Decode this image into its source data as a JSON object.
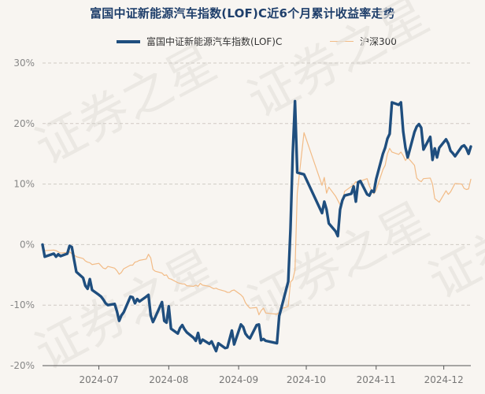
{
  "chart_data": {
    "type": "line",
    "title": "富国中证新能源汽车指数(LOF)C近6个月累计收益率走势",
    "watermark": "证券之星",
    "ylim": [
      -20,
      30
    ],
    "yticks": [
      -20,
      -10,
      0,
      10,
      20,
      30
    ],
    "ytick_labels": [
      "-20%",
      "-10%",
      "0%",
      "10%",
      "20%",
      "30%"
    ],
    "xlim": [
      "2024-06-06",
      "2024-12-13"
    ],
    "xticks": [
      "2024-07-01",
      "2024-08-01",
      "2024-09-01",
      "2024-10-01",
      "2024-11-01",
      "2024-12-01"
    ],
    "xtick_labels": [
      "2024-07",
      "2024-08",
      "2024-09",
      "2024-10",
      "2024-11",
      "2024-12"
    ],
    "legend_position": "top",
    "colors": {
      "primary": "#1f4e7e",
      "benchmark": "#f2bb86"
    },
    "dates": [
      "2024-06-06",
      "2024-06-07",
      "2024-06-11",
      "2024-06-12",
      "2024-06-13",
      "2024-06-14",
      "2024-06-17",
      "2024-06-18",
      "2024-06-19",
      "2024-06-20",
      "2024-06-21",
      "2024-06-24",
      "2024-06-25",
      "2024-06-26",
      "2024-06-27",
      "2024-06-28",
      "2024-07-01",
      "2024-07-02",
      "2024-07-03",
      "2024-07-04",
      "2024-07-05",
      "2024-07-08",
      "2024-07-09",
      "2024-07-10",
      "2024-07-11",
      "2024-07-12",
      "2024-07-15",
      "2024-07-16",
      "2024-07-17",
      "2024-07-18",
      "2024-07-19",
      "2024-07-22",
      "2024-07-23",
      "2024-07-24",
      "2024-07-25",
      "2024-07-26",
      "2024-07-29",
      "2024-07-30",
      "2024-07-31",
      "2024-08-01",
      "2024-08-02",
      "2024-08-05",
      "2024-08-06",
      "2024-08-07",
      "2024-08-08",
      "2024-08-09",
      "2024-08-12",
      "2024-08-13",
      "2024-08-14",
      "2024-08-15",
      "2024-08-16",
      "2024-08-19",
      "2024-08-20",
      "2024-08-21",
      "2024-08-22",
      "2024-08-23",
      "2024-08-26",
      "2024-08-27",
      "2024-08-28",
      "2024-08-29",
      "2024-08-30",
      "2024-09-02",
      "2024-09-03",
      "2024-09-04",
      "2024-09-05",
      "2024-09-06",
      "2024-09-09",
      "2024-09-10",
      "2024-09-11",
      "2024-09-12",
      "2024-09-13",
      "2024-09-18",
      "2024-09-19",
      "2024-09-20",
      "2024-09-23",
      "2024-09-24",
      "2024-09-25",
      "2024-09-26",
      "2024-09-27",
      "2024-09-30",
      "2024-10-08",
      "2024-10-09",
      "2024-10-10",
      "2024-10-11",
      "2024-10-14",
      "2024-10-15",
      "2024-10-16",
      "2024-10-17",
      "2024-10-18",
      "2024-10-21",
      "2024-10-22",
      "2024-10-23",
      "2024-10-24",
      "2024-10-25",
      "2024-10-28",
      "2024-10-29",
      "2024-10-30",
      "2024-10-31",
      "2024-11-01",
      "2024-11-04",
      "2024-11-05",
      "2024-11-06",
      "2024-11-07",
      "2024-11-08",
      "2024-11-11",
      "2024-11-12",
      "2024-11-13",
      "2024-11-14",
      "2024-11-15",
      "2024-11-18",
      "2024-11-19",
      "2024-11-20",
      "2024-11-21",
      "2024-11-22",
      "2024-11-25",
      "2024-11-26",
      "2024-11-27",
      "2024-11-28",
      "2024-11-29",
      "2024-12-02",
      "2024-12-03",
      "2024-12-04",
      "2024-12-05",
      "2024-12-06",
      "2024-12-09",
      "2024-12-10",
      "2024-12-11",
      "2024-12-12",
      "2024-12-13"
    ],
    "series": [
      {
        "name": "富国中证新能源汽车指数(LOF)C",
        "values": [
          0.0,
          -2.0,
          -1.5,
          -2.0,
          -1.6,
          -1.9,
          -1.5,
          -0.2,
          -0.4,
          -2.5,
          -4.5,
          -5.5,
          -6.8,
          -7.3,
          -5.7,
          -7.5,
          -8.3,
          -8.6,
          -9.1,
          -9.7,
          -10.0,
          -9.8,
          -11.0,
          -12.6,
          -11.7,
          -11.2,
          -8.6,
          -8.7,
          -9.7,
          -9.0,
          -9.4,
          -8.6,
          -8.3,
          -11.7,
          -12.8,
          -12.0,
          -9.5,
          -12.6,
          -12.9,
          -10.2,
          -13.9,
          -14.7,
          -13.8,
          -13.3,
          -14.0,
          -14.5,
          -15.4,
          -15.9,
          -14.6,
          -16.3,
          -15.7,
          -16.4,
          -16.0,
          -16.8,
          -17.6,
          -16.3,
          -17.1,
          -17.0,
          -15.6,
          -14.2,
          -16.5,
          -13.2,
          -13.6,
          -14.7,
          -15.2,
          -15.5,
          -13.3,
          -13.2,
          -15.8,
          -15.6,
          -15.9,
          -16.3,
          -11.8,
          -10.4,
          -6.1,
          2.6,
          15.0,
          23.7,
          11.9,
          11.6,
          5.2,
          7.1,
          5.8,
          3.5,
          2.2,
          1.4,
          5.8,
          7.3,
          8.1,
          8.4,
          9.6,
          7.1,
          10.3,
          10.5,
          8.3,
          8.1,
          8.9,
          8.7,
          10.8,
          15.0,
          16.0,
          17.5,
          18.3,
          23.5,
          23.1,
          23.5,
          18.7,
          16.0,
          14.4,
          18.6,
          19.5,
          19.9,
          19.3,
          15.7,
          17.8,
          14.0,
          15.9,
          14.4,
          16.0,
          17.4,
          16.7,
          15.5,
          15.1,
          14.6,
          16.2,
          16.4,
          15.9,
          15.0,
          16.2
        ]
      },
      {
        "name": "沪深300",
        "values": [
          0.0,
          -1.0,
          -0.9,
          -1.0,
          -1.2,
          -1.4,
          -1.3,
          -1.2,
          -1.5,
          -1.7,
          -2.0,
          -2.3,
          -2.7,
          -2.9,
          -3.0,
          -3.3,
          -3.1,
          -3.5,
          -3.9,
          -4.0,
          -3.6,
          -3.9,
          -4.3,
          -4.9,
          -4.6,
          -4.0,
          -3.4,
          -3.4,
          -2.9,
          -2.8,
          -2.6,
          -2.4,
          -1.6,
          -2.2,
          -4.1,
          -4.4,
          -4.7,
          -5.1,
          -5.0,
          -5.6,
          -5.7,
          -6.3,
          -6.4,
          -6.5,
          -6.5,
          -6.8,
          -6.9,
          -6.7,
          -6.9,
          -6.4,
          -6.7,
          -6.9,
          -7.1,
          -7.3,
          -7.2,
          -7.4,
          -7.7,
          -7.9,
          -7.9,
          -7.6,
          -7.5,
          -8.3,
          -8.7,
          -9.6,
          -10.1,
          -10.5,
          -10.4,
          -11.6,
          -10.9,
          -10.5,
          -11.3,
          -11.5,
          -11.2,
          -10.6,
          -10.2,
          -6.2,
          -5.8,
          -4.2,
          8.5,
          18.5,
          9.8,
          11.1,
          8.5,
          9.5,
          8.0,
          7.3,
          6.6,
          7.0,
          8.8,
          9.6,
          9.9,
          10.4,
          10.0,
          10.5,
          10.9,
          9.7,
          8.9,
          8.4,
          9.0,
          12.4,
          13.1,
          15.0,
          15.9,
          15.3,
          14.9,
          15.3,
          14.7,
          13.9,
          14.4,
          13.1,
          11.0,
          10.6,
          10.4,
          10.9,
          11.0,
          10.0,
          7.6,
          7.3,
          7.0,
          8.9,
          8.3,
          8.7,
          9.4,
          10.1,
          10.0,
          9.3,
          9.1,
          9.2,
          10.8
        ]
      }
    ]
  }
}
